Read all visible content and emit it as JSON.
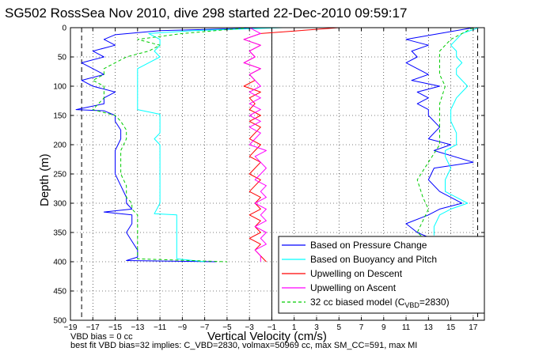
{
  "chart_data": {
    "type": "line",
    "title": "SG502 RossSea Nov 2010, dive 298 started 22-Dec-2010 09:59:17",
    "xlabel": "Vertical Velocity (cm/s)",
    "ylabel": "Depth (m)",
    "xlim": [
      -19,
      18
    ],
    "ylim": [
      500,
      0
    ],
    "y_reversed": true,
    "grid": true,
    "grid_style": "dotted",
    "x_ticks": [
      -19,
      -17,
      -15,
      -13,
      -11,
      -9,
      -7,
      -5,
      -3,
      -1,
      1,
      3,
      5,
      7,
      9,
      11,
      13,
      15,
      17
    ],
    "y_ticks": [
      0,
      50,
      100,
      150,
      200,
      250,
      300,
      350,
      400,
      450,
      500
    ],
    "vertical_lines": [
      {
        "x": -18,
        "style": "dashed",
        "color": "#000000"
      },
      {
        "x": -1,
        "style": "solid",
        "color": "#000000"
      },
      {
        "x": 17.4,
        "style": "dashed",
        "color": "#000000"
      }
    ],
    "legend_position": "bottom-right",
    "legend": [
      {
        "label": "Based on Pressure Change",
        "color": "#0000ff",
        "style": "solid"
      },
      {
        "label": "Based on Buoyancy and Pitch",
        "color": "#00ffff",
        "style": "solid"
      },
      {
        "label": "Upwelling on Descent",
        "color": "#ff0000",
        "style": "solid"
      },
      {
        "label": "Upwelling on Ascent",
        "color": "#ff00ff",
        "style": "solid"
      },
      {
        "label": "32 cc biased model (C",
        "sub": "VBD",
        "label_tail": "=2830)",
        "color": "#00cc00",
        "style": "dashed"
      }
    ],
    "series": [
      {
        "key": "pressure_descent",
        "color": "#0000ff",
        "y": [
          0,
          5,
          12,
          20,
          30,
          40,
          50,
          60,
          70,
          80,
          90,
          100,
          110,
          120,
          130,
          140,
          142,
          150,
          160,
          175,
          190,
          210,
          230,
          250,
          270,
          290,
          300,
          310,
          315,
          320,
          335,
          350,
          365,
          380,
          392,
          398,
          400
        ],
        "x": [
          -1,
          -11,
          -15,
          -16,
          -15,
          -17,
          -16,
          -18,
          -17,
          -16,
          -18,
          -17,
          -15,
          -16,
          -16,
          -18.5,
          -16,
          -15,
          -15,
          -14.5,
          -14.5,
          -15,
          -15,
          -15,
          -14.5,
          -14,
          -14,
          -13.5,
          -16,
          -13.5,
          -13.5,
          -14,
          -13.5,
          -13,
          -13,
          -14,
          -6
        ]
      },
      {
        "key": "buoyancy_descent",
        "color": "#00ffff",
        "y": [
          0,
          5,
          10,
          20,
          30,
          40,
          50,
          60,
          70,
          80,
          90,
          100,
          120,
          140,
          148,
          160,
          180,
          190,
          200,
          220,
          240,
          260,
          280,
          300,
          318,
          320,
          340,
          360,
          380,
          395,
          400
        ],
        "x": [
          0,
          -8,
          -12,
          -11,
          -11,
          -11.5,
          -11,
          -12,
          -13,
          -13,
          -13,
          -13,
          -13,
          -13,
          -11,
          -11,
          -11,
          -11.5,
          -11,
          -11,
          -11,
          -11,
          -11,
          -11,
          -11.5,
          -9.5,
          -9.5,
          -9.5,
          -9.5,
          -9.5,
          -7
        ]
      },
      {
        "key": "model_descent",
        "color": "#00cc00",
        "dash": true,
        "y": [
          0,
          10,
          20,
          30,
          40,
          50,
          60,
          70,
          80,
          90,
          100,
          120,
          140,
          150,
          160,
          175,
          190,
          210,
          230,
          250,
          270,
          290,
          300,
          310,
          320,
          340,
          360,
          380,
          395,
          400
        ],
        "x": [
          -3,
          -9,
          -13,
          -11,
          -12,
          -14,
          -15,
          -16,
          -16,
          -17,
          -16,
          -16,
          -17,
          -15,
          -14.5,
          -14,
          -14,
          -14.5,
          -14.5,
          -14.5,
          -14,
          -14,
          -13.5,
          -13.5,
          -13,
          -13,
          -13,
          -13,
          -13,
          -5
        ]
      },
      {
        "key": "upwelling_descent",
        "color": "#ff0000",
        "y": [
          0,
          10,
          20,
          30,
          40,
          50,
          60,
          70,
          80,
          90,
          100,
          110,
          120,
          130,
          140,
          150,
          160,
          170,
          180,
          190,
          200,
          210,
          220,
          230,
          240,
          250,
          260,
          270,
          280,
          290,
          300,
          310,
          320,
          330,
          340,
          350,
          360,
          370,
          380,
          390,
          400
        ],
        "x": [
          5,
          -2,
          -3.5,
          -2,
          -3,
          -2.5,
          -3.5,
          -2,
          -3,
          -2.5,
          -3.5,
          -2,
          -3,
          -2.5,
          -3,
          -2,
          -3,
          -2,
          -2.5,
          -3,
          -2,
          -2.5,
          -3,
          -2,
          -2.5,
          -3,
          -2,
          -2.5,
          -3,
          -2,
          -2.5,
          -2,
          -3,
          -2,
          -2.5,
          -2,
          -3,
          -2,
          -2.5,
          -2,
          -1.5
        ]
      },
      {
        "key": "upwelling_ascent",
        "color": "#ff00ff",
        "y": [
          0,
          10,
          20,
          30,
          40,
          50,
          60,
          70,
          80,
          90,
          100,
          110,
          120,
          130,
          140,
          150,
          160,
          170,
          180,
          190,
          200,
          210,
          220,
          230,
          240,
          250,
          260,
          270,
          280,
          290,
          300,
          310,
          320,
          330,
          340,
          350,
          360,
          370,
          380,
          390,
          400
        ],
        "x": [
          -3,
          -2,
          -3.5,
          -2,
          -3,
          -2.5,
          -3.5,
          -2,
          -3,
          -2.5,
          -2,
          -3,
          -2,
          -3,
          -2,
          -3,
          -2,
          -3,
          -2,
          -2.5,
          -3,
          -1.5,
          -2.5,
          -2,
          -1.5,
          -2,
          -2.5,
          -1.5,
          -2,
          -1.5,
          -2.5,
          -1.5,
          -2,
          -1.5,
          -2.5,
          -1.5,
          -2,
          -1.5,
          -2.5,
          -2,
          -2
        ]
      },
      {
        "key": "pressure_ascent",
        "color": "#0000ff",
        "y": [
          0,
          10,
          20,
          30,
          40,
          50,
          60,
          70,
          80,
          90,
          100,
          110,
          120,
          130,
          140,
          150,
          170,
          190,
          200,
          210,
          230,
          240,
          260,
          280,
          300,
          310,
          320,
          335,
          350,
          358
        ],
        "x": [
          17,
          14,
          11,
          13,
          11.5,
          12,
          11,
          12,
          13,
          11.5,
          14,
          12,
          13,
          12,
          13,
          13,
          14,
          13,
          15,
          13.5,
          17,
          13.5,
          13,
          14,
          16,
          14,
          13,
          11,
          12,
          13
        ]
      },
      {
        "key": "buoyancy_ascent",
        "color": "#00ffff",
        "y": [
          0,
          10,
          20,
          30,
          40,
          50,
          60,
          70,
          80,
          90,
          100,
          110,
          120,
          140,
          160,
          180,
          200,
          210,
          220,
          240,
          260,
          280,
          290,
          300,
          310,
          320,
          340,
          355
        ],
        "x": [
          17.5,
          16,
          15.5,
          15,
          15.5,
          15.5,
          16,
          15.5,
          15.5,
          16,
          16.5,
          16,
          15.5,
          15,
          15,
          15.5,
          15.5,
          14.5,
          14.5,
          15,
          14.5,
          14.5,
          15.5,
          16.5,
          15,
          14,
          13.5,
          13.5
        ]
      },
      {
        "key": "model_ascent",
        "color": "#00cc00",
        "dash": true,
        "y": [
          0,
          20,
          40,
          60,
          80,
          100,
          130,
          160,
          200,
          230,
          260,
          290,
          310,
          330,
          350,
          358
        ],
        "x": [
          17,
          15,
          14,
          14,
          14,
          14.5,
          14,
          14,
          14,
          13,
          12,
          12.5,
          13,
          12.5,
          12,
          12.5
        ]
      }
    ]
  },
  "footer": {
    "line1": "VBD bias = 0 cc",
    "line2": "best fit VBD bias=32 implies: C_VBD=2830, volmax=50969 cc, max SM_CC=591, max MI"
  }
}
